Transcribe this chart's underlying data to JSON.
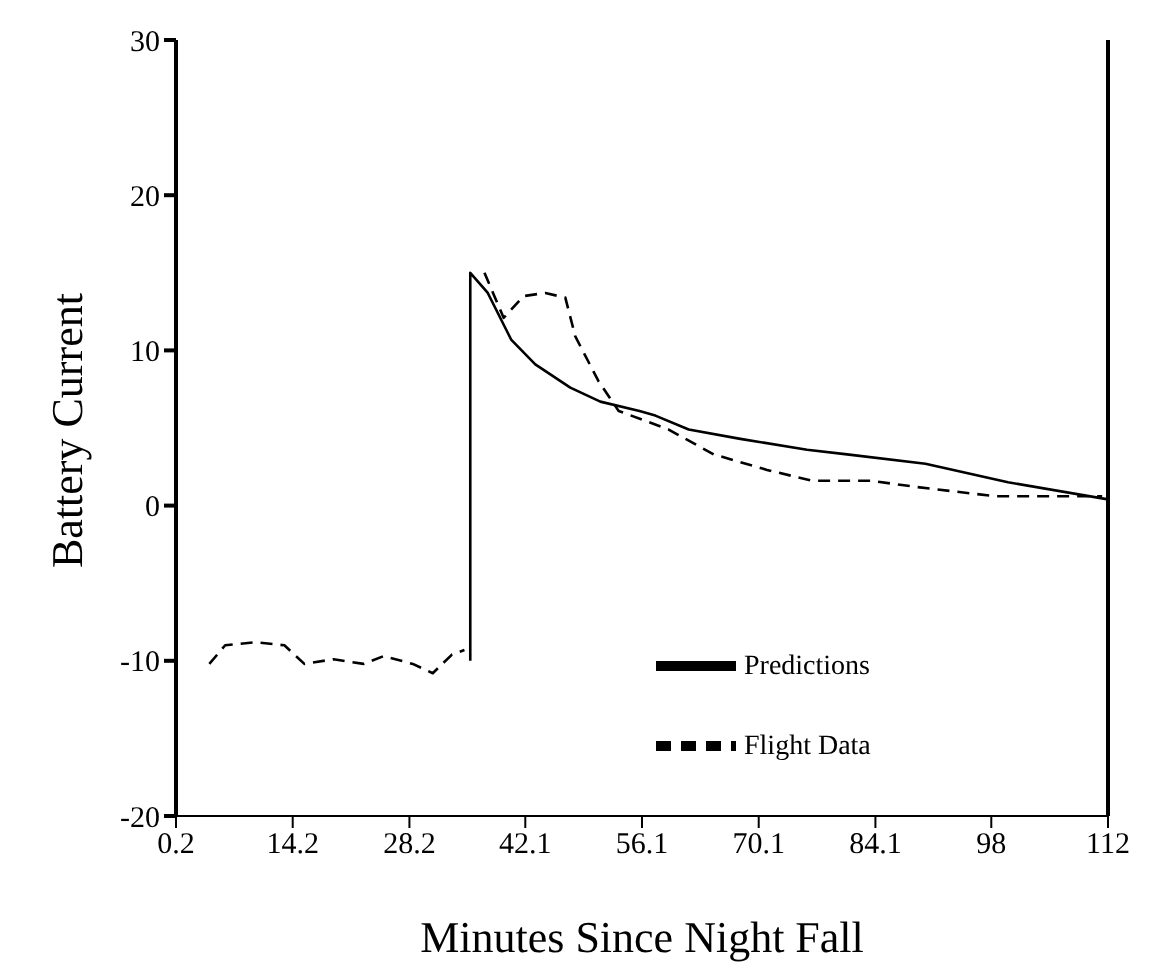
{
  "chart_data": {
    "type": "line",
    "xlabel": "Minutes Since Night Fall",
    "ylabel": "Battery Current",
    "xlim": [
      0.2,
      112
    ],
    "xticks": [
      0.2,
      14.2,
      28.2,
      42.1,
      56.1,
      70.1,
      84.1,
      98,
      112
    ],
    "ylim": [
      -20,
      30
    ],
    "yticks": [
      -20,
      -10,
      0,
      10,
      20,
      30
    ],
    "grid": false,
    "legend": "bottom right",
    "marker": "none",
    "series": [
      {
        "name": "Predictions",
        "color": "#000000",
        "line_style": "solid",
        "x": [
          35.5,
          35.5,
          37.6,
          40.4,
          43.3,
          47.5,
          51.1,
          55.8,
          57.7,
          61.7,
          67.9,
          75.9,
          80.7,
          90.1,
          100,
          112
        ],
        "values": [
          -10,
          15,
          13.7,
          10.7,
          9.1,
          7.6,
          6.7,
          6.1,
          5.8,
          4.9,
          4.3,
          3.6,
          3.3,
          2.7,
          1.5,
          0.4
        ]
      },
      {
        "name": "Flight Data",
        "color": "#000000",
        "line_style": "dashed",
        "x": [
          4.2,
          6.1,
          9.7,
          13.2,
          15.6,
          19.1,
          22.7,
          25.1,
          28.6,
          31,
          33.3,
          34.8,
          35.6,
          37.2,
          39.5,
          41.9,
          44.5,
          46.9,
          48.1,
          50.9,
          53.3,
          59.3,
          64.7,
          71.1,
          76.5,
          83.6,
          89,
          98.5,
          111.3
        ],
        "values": [
          -10.2,
          -9,
          -8.8,
          -9,
          -10.2,
          -9.9,
          -10.2,
          -9.7,
          -10.2,
          -10.8,
          -9.6,
          -9.3,
          null,
          15,
          12.1,
          13.5,
          13.7,
          13.4,
          10.9,
          8,
          6.1,
          4.9,
          3.3,
          2.3,
          1.6,
          1.6,
          1.2,
          0.6,
          0.6
        ]
      }
    ]
  }
}
